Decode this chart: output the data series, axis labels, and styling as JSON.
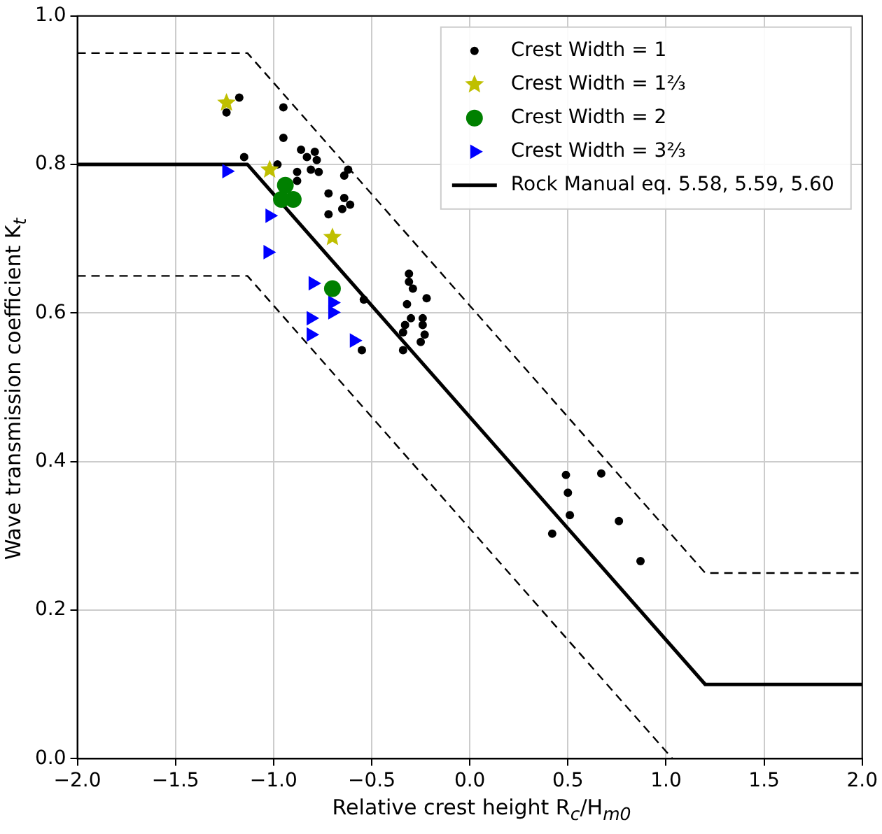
{
  "chart_data": {
    "type": "scatter",
    "xlabel": "Relative crest height R$_{c}$/H$_{m0}$",
    "ylabel": "Wave transmission coefficient K$_{t}$",
    "xlim": [
      -2,
      2
    ],
    "ylim": [
      0,
      1
    ],
    "xticks": [
      {
        "value": -2,
        "label": "−2.0"
      },
      {
        "value": -1.5,
        "label": "−1.5"
      },
      {
        "value": -1,
        "label": "−1.0"
      },
      {
        "value": -0.5,
        "label": "−0.5"
      },
      {
        "value": 0,
        "label": "0.0"
      },
      {
        "value": 0.5,
        "label": "0.5"
      },
      {
        "value": 1,
        "label": "1.0"
      },
      {
        "value": 1.5,
        "label": "1.5"
      },
      {
        "value": 2,
        "label": "2.0"
      }
    ],
    "yticks": [
      {
        "value": 0,
        "label": "0.0"
      },
      {
        "value": 0.2,
        "label": "0.2"
      },
      {
        "value": 0.4,
        "label": "0.4"
      },
      {
        "value": 0.6,
        "label": "0.6"
      },
      {
        "value": 0.8,
        "label": "0.8"
      },
      {
        "value": 1,
        "label": "1.0"
      }
    ],
    "grid": true,
    "legend": "top right",
    "series": [
      {
        "name": "Crest Width = 1",
        "type": "scatter",
        "marker": "circle",
        "color": "#000000",
        "x": [
          -1.175,
          -1.24,
          -1.15,
          -0.95,
          -0.95,
          -0.98,
          -0.86,
          -0.83,
          -0.79,
          -0.78,
          -0.88,
          -0.81,
          -0.88,
          -0.77,
          -0.62,
          -0.64,
          -0.72,
          -0.64,
          -0.61,
          -0.65,
          -0.72,
          -0.54,
          -0.55,
          -0.31,
          -0.31,
          -0.29,
          -0.32,
          -0.22,
          -0.3,
          -0.24,
          -0.33,
          -0.24,
          -0.34,
          -0.23,
          -0.25,
          -0.34,
          0.49,
          0.67,
          0.5,
          0.51,
          0.42,
          0.76,
          0.87
        ],
        "values": [
          0.89,
          0.87,
          0.81,
          0.877,
          0.836,
          0.8,
          0.82,
          0.81,
          0.817,
          0.806,
          0.79,
          0.793,
          0.778,
          0.79,
          0.793,
          0.785,
          0.761,
          0.755,
          0.746,
          0.74,
          0.733,
          0.618,
          0.55,
          0.653,
          0.642,
          0.633,
          0.612,
          0.62,
          0.593,
          0.593,
          0.584,
          0.584,
          0.574,
          0.571,
          0.561,
          0.55,
          0.382,
          0.384,
          0.358,
          0.328,
          0.303,
          0.32,
          0.266
        ]
      },
      {
        "name": "Crest Width = 1⅔",
        "type": "scatter",
        "marker": "star",
        "color": "#bfbf00",
        "x": [
          -1.24,
          -1.02,
          -0.7
        ],
        "values": [
          0.883,
          0.793,
          0.702
        ]
      },
      {
        "name": "Crest Width = 2",
        "type": "scatter",
        "marker": "circle",
        "color": "#008000",
        "x": [
          -0.94,
          -0.96,
          -0.9,
          -0.7
        ],
        "values": [
          0.772,
          0.753,
          0.753,
          0.633
        ]
      },
      {
        "name": "Crest Width = 3⅔",
        "type": "scatter",
        "marker": "triangle",
        "color": "#0000ff",
        "x": [
          -1.24,
          -1.02,
          -1.03,
          -0.8,
          -0.7,
          -0.7,
          -0.81,
          -0.81,
          -0.59
        ],
        "values": [
          0.791,
          0.731,
          0.682,
          0.64,
          0.614,
          0.601,
          0.593,
          0.571,
          0.563
        ]
      },
      {
        "name": "Rock Manual eq. 5.58, 5.59, 5.60",
        "type": "line",
        "marker": "none",
        "line_style": "solid",
        "color": "#000000",
        "x": [
          -2,
          -1.133,
          1.2,
          2
        ],
        "values": [
          0.8,
          0.8,
          0.1,
          0.1
        ]
      },
      {
        "type": "line",
        "marker": "none",
        "line_style": "dashed",
        "color": "#000000",
        "x": [
          -2,
          -1.133,
          1.2,
          2
        ],
        "values": [
          0.95,
          0.95,
          0.25,
          0.25
        ]
      },
      {
        "type": "line",
        "marker": "none",
        "line_style": "dashed",
        "color": "#000000",
        "x": [
          -2,
          -1.133,
          1.033
        ],
        "values": [
          0.65,
          0.65,
          0
        ]
      }
    ]
  }
}
